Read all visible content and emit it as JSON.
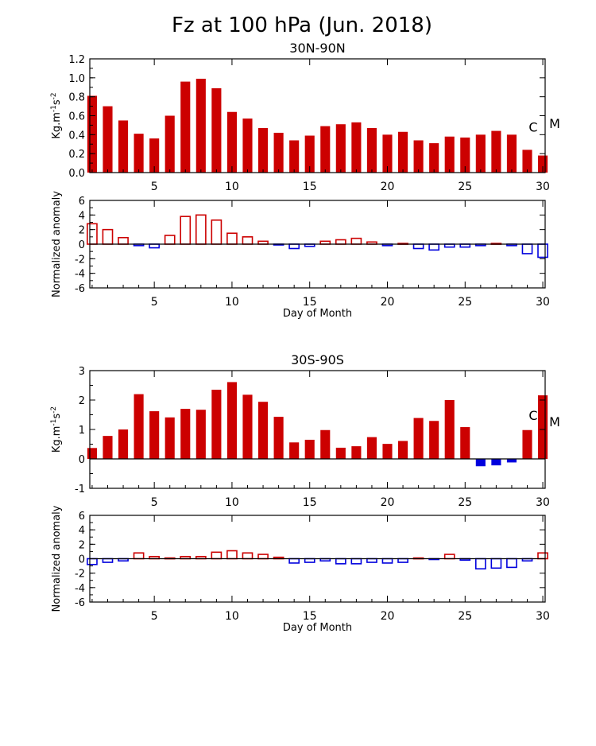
{
  "main_title": "Fz at 100 hPa (Jun. 2018)",
  "colors": {
    "positive": "#cc0000",
    "negative": "#0000dd",
    "axis": "#000000"
  },
  "chart_data": [
    {
      "type": "bar",
      "panel": "north-fz",
      "title": "30N-90N",
      "ylabel": "Kg.m⁻¹s⁻²",
      "xlabel": "",
      "x": [
        1,
        2,
        3,
        4,
        5,
        6,
        7,
        8,
        9,
        10,
        11,
        12,
        13,
        14,
        15,
        16,
        17,
        18,
        19,
        20,
        21,
        22,
        23,
        24,
        25,
        26,
        27,
        28,
        29,
        30
      ],
      "values": [
        0.81,
        0.7,
        0.55,
        0.41,
        0.36,
        0.6,
        0.96,
        0.99,
        0.89,
        0.64,
        0.57,
        0.47,
        0.42,
        0.34,
        0.39,
        0.49,
        0.51,
        0.53,
        0.47,
        0.4,
        0.43,
        0.34,
        0.31,
        0.38,
        0.37,
        0.4,
        0.44,
        0.4,
        0.24,
        0.18
      ],
      "fill": "solid",
      "ylim": [
        0.0,
        1.2
      ],
      "yticks": [
        0.0,
        0.2,
        0.4,
        0.6,
        0.8,
        1.0,
        1.2
      ],
      "ytick_labels": [
        "0.0",
        "0.2",
        "0.4",
        "0.6",
        "0.8",
        "1.0",
        "1.2"
      ],
      "xticks": [
        5,
        10,
        15,
        20,
        25,
        30
      ],
      "xtick_labels": [
        "5",
        "10",
        "15",
        "20",
        "25",
        "30"
      ],
      "annotations": {
        "c": {
          "label": "C",
          "value": 0.49
        },
        "m": {
          "label": "M",
          "value": 0.53
        }
      },
      "grid": false
    },
    {
      "type": "bar",
      "panel": "north-anomaly",
      "title": "",
      "ylabel": "Normalized anomaly",
      "xlabel": "Day of Month",
      "x": [
        1,
        2,
        3,
        4,
        5,
        6,
        7,
        8,
        9,
        10,
        11,
        12,
        13,
        14,
        15,
        16,
        17,
        18,
        19,
        20,
        21,
        22,
        23,
        24,
        25,
        26,
        27,
        28,
        29,
        30
      ],
      "values": [
        2.8,
        2.0,
        0.9,
        -0.2,
        -0.5,
        1.2,
        3.8,
        4.0,
        3.3,
        1.5,
        1.0,
        0.4,
        -0.1,
        -0.6,
        -0.3,
        0.4,
        0.6,
        0.8,
        0.3,
        -0.2,
        0.1,
        -0.6,
        -0.8,
        -0.4,
        -0.4,
        -0.2,
        0.1,
        -0.2,
        -1.3,
        -1.8
      ],
      "fill": "outline",
      "ylim": [
        -6,
        6
      ],
      "yticks": [
        -6,
        -4,
        -2,
        0,
        2,
        4,
        6
      ],
      "ytick_labels": [
        "-6",
        "-4",
        "-2",
        "0",
        "2",
        "4",
        "6"
      ],
      "xticks": [
        5,
        10,
        15,
        20,
        25,
        30
      ],
      "xtick_labels": [
        "5",
        "10",
        "15",
        "20",
        "25",
        "30"
      ],
      "grid": false
    },
    {
      "type": "bar",
      "panel": "south-fz",
      "title": "30S-90S",
      "ylabel": "Kg.m⁻¹s⁻²",
      "xlabel": "",
      "x": [
        1,
        2,
        3,
        4,
        5,
        6,
        7,
        8,
        9,
        10,
        11,
        12,
        13,
        14,
        15,
        16,
        17,
        18,
        19,
        20,
        21,
        22,
        23,
        24,
        25,
        26,
        27,
        28,
        29,
        30
      ],
      "values": [
        0.37,
        0.78,
        1.0,
        2.2,
        1.62,
        1.41,
        1.7,
        1.67,
        2.35,
        2.61,
        2.18,
        1.94,
        1.43,
        0.56,
        0.65,
        0.98,
        0.38,
        0.43,
        0.74,
        0.51,
        0.61,
        1.39,
        1.29,
        2.0,
        1.08,
        -0.25,
        -0.22,
        -0.12,
        0.98,
        2.16
      ],
      "fill": "solid",
      "ylim": [
        -1,
        3
      ],
      "yticks": [
        -1,
        0,
        1,
        2,
        3
      ],
      "ytick_labels": [
        "-1",
        "0",
        "1",
        "2",
        "3"
      ],
      "xticks": [
        5,
        10,
        15,
        20,
        25,
        30
      ],
      "xtick_labels": [
        "5",
        "10",
        "15",
        "20",
        "25",
        "30"
      ],
      "annotations": {
        "c": {
          "label": "C",
          "value": 1.52
        },
        "m": {
          "label": "M",
          "value": 1.3
        }
      },
      "grid": false
    },
    {
      "type": "bar",
      "panel": "south-anomaly",
      "title": "",
      "ylabel": "Normalized anomaly",
      "xlabel": "Day of Month",
      "x": [
        1,
        2,
        3,
        4,
        5,
        6,
        7,
        8,
        9,
        10,
        11,
        12,
        13,
        14,
        15,
        16,
        17,
        18,
        19,
        20,
        21,
        22,
        23,
        24,
        25,
        26,
        27,
        28,
        29,
        30
      ],
      "values": [
        -0.8,
        -0.5,
        -0.3,
        0.8,
        0.3,
        0.1,
        0.3,
        0.3,
        0.9,
        1.1,
        0.8,
        0.6,
        0.2,
        -0.6,
        -0.5,
        -0.3,
        -0.7,
        -0.7,
        -0.5,
        -0.6,
        -0.5,
        0.1,
        -0.1,
        0.6,
        -0.2,
        -1.4,
        -1.3,
        -1.2,
        -0.3,
        0.8
      ],
      "fill": "outline",
      "ylim": [
        -6,
        6
      ],
      "yticks": [
        -6,
        -4,
        -2,
        0,
        2,
        4,
        6
      ],
      "ytick_labels": [
        "-6",
        "-4",
        "-2",
        "0",
        "2",
        "4",
        "6"
      ],
      "xticks": [
        5,
        10,
        15,
        20,
        25,
        30
      ],
      "xtick_labels": [
        "5",
        "10",
        "15",
        "20",
        "25",
        "30"
      ],
      "grid": false
    }
  ]
}
